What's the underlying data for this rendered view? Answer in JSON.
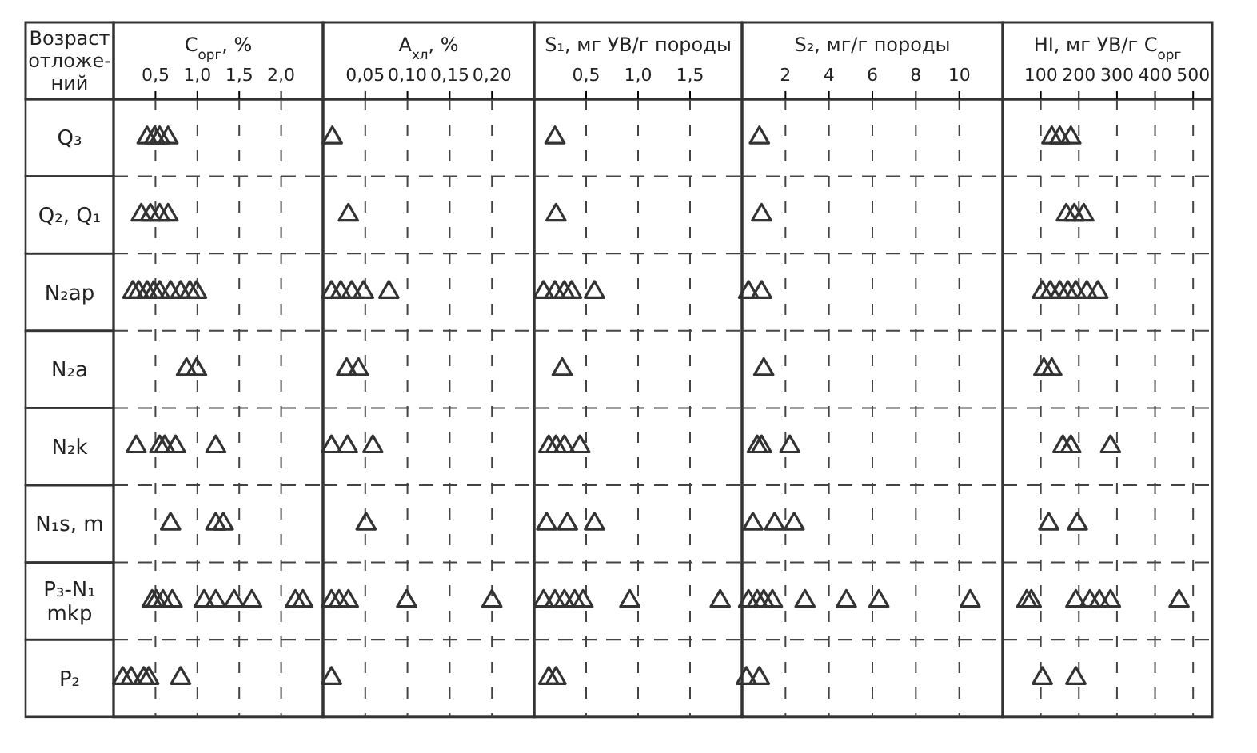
{
  "chart_data": [
    {
      "type": "scatter",
      "orientation": "horizontal",
      "title": "C$_{орг}$, %",
      "ylabel": "Возраст отложе-ний",
      "categories": [
        "Q₃",
        "Q₂, Q₁",
        "N₂ap",
        "N₂a",
        "N₂k",
        "N₁s, m",
        "P₃-N₁ mkp",
        "P₂"
      ],
      "xlim": [
        0,
        2.5
      ],
      "xticks": [
        {
          "value": 0.5,
          "label": "0,5"
        },
        {
          "value": 1.0,
          "label": "1,0"
        },
        {
          "value": 1.5,
          "label": "1,5"
        },
        {
          "value": 2.0,
          "label": "2,0"
        }
      ],
      "grid": "x",
      "marker": "triangle",
      "series": [
        {
          "color": "#333333",
          "values": [
            0.4,
            0.33,
            0.23,
            0.87,
            0.27,
            0.68,
            0.46,
            0.11
          ]
        },
        {
          "color": "#333333",
          "values": [
            0.49,
            0.44,
            0.3,
            0.99,
            0.55,
            1.22,
            0.51,
            0.21
          ]
        },
        {
          "color": "#333333",
          "values": [
            0.55,
            0.55,
            0.4,
            null,
            0.61,
            1.31,
            0.59,
            0.36
          ]
        },
        {
          "color": "#333333",
          "values": [
            0.65,
            0.65,
            0.48,
            null,
            0.74,
            null,
            0.7,
            0.42
          ]
        },
        {
          "color": "#333333",
          "values": [
            null,
            null,
            0.55,
            null,
            1.22,
            null,
            1.08,
            0.8
          ]
        },
        {
          "color": "#333333",
          "values": [
            null,
            null,
            0.68,
            null,
            null,
            null,
            1.22,
            null
          ]
        },
        {
          "color": "#333333",
          "values": [
            null,
            null,
            0.8,
            null,
            null,
            null,
            1.44,
            null
          ]
        },
        {
          "color": "#333333",
          "values": [
            null,
            null,
            0.91,
            null,
            null,
            null,
            1.65,
            null
          ]
        },
        {
          "color": "#333333",
          "values": [
            null,
            null,
            0.99,
            null,
            null,
            null,
            2.17,
            null
          ]
        },
        {
          "color": "#333333",
          "values": [
            null,
            null,
            null,
            null,
            null,
            null,
            2.26,
            null
          ]
        }
      ]
    },
    {
      "type": "scatter",
      "orientation": "horizontal",
      "title": "A$_{хл}$, %",
      "tick_labels": "x",
      "xlim": [
        0,
        0.25
      ],
      "xticks": [
        {
          "value": 0.05,
          "label": "0,05"
        },
        {
          "value": 0.1,
          "label": "0,10"
        },
        {
          "value": 0.15,
          "label": "0,15"
        },
        {
          "value": 0.2,
          "label": "0,20"
        }
      ],
      "grid": "x",
      "marker": "triangle",
      "series": [
        {
          "color": "#333333",
          "values": [
            0.011,
            0.03,
            0.01,
            0.028,
            0.01,
            0.051,
            0.01,
            0.01
          ]
        },
        {
          "color": "#333333",
          "values": [
            null,
            null,
            0.021,
            0.042,
            0.029,
            null,
            0.019,
            null
          ]
        },
        {
          "color": "#333333",
          "values": [
            null,
            null,
            0.034,
            null,
            0.059,
            null,
            0.03,
            null
          ]
        },
        {
          "color": "#333333",
          "values": [
            null,
            null,
            0.048,
            null,
            null,
            null,
            0.099,
            null
          ]
        },
        {
          "color": "#333333",
          "values": [
            null,
            null,
            0.078,
            null,
            null,
            null,
            0.2,
            null
          ]
        }
      ]
    },
    {
      "type": "scatter",
      "orientation": "horizontal",
      "title": "S₁, мг УВ/г породы",
      "tick_labels": "x",
      "xlim": [
        0,
        2
      ],
      "xticks": [
        {
          "value": 0.5,
          "label": "0,5"
        },
        {
          "value": 1.0,
          "label": "1,0"
        },
        {
          "value": 1.5,
          "label": "1,5"
        }
      ],
      "grid": "x",
      "marker": "triangle",
      "series": [
        {
          "color": "#333333",
          "values": [
            0.2,
            0.21,
            0.09,
            0.27,
            0.14,
            0.12,
            0.09,
            0.14
          ]
        },
        {
          "color": "#333333",
          "values": [
            null,
            null,
            0.2,
            null,
            0.21,
            0.32,
            0.2,
            0.21
          ]
        },
        {
          "color": "#333333",
          "values": [
            null,
            null,
            0.29,
            null,
            0.29,
            0.58,
            0.29,
            null
          ]
        },
        {
          "color": "#333333",
          "values": [
            null,
            null,
            0.36,
            null,
            0.44,
            null,
            0.39,
            null
          ]
        },
        {
          "color": "#333333",
          "values": [
            null,
            null,
            0.58,
            null,
            null,
            null,
            0.47,
            null
          ]
        },
        {
          "color": "#333333",
          "values": [
            null,
            null,
            null,
            null,
            null,
            null,
            0.92,
            null
          ]
        },
        {
          "color": "#333333",
          "values": [
            null,
            null,
            null,
            null,
            null,
            null,
            1.79,
            null
          ]
        }
      ]
    },
    {
      "type": "scatter",
      "orientation": "horizontal",
      "title": "S₂, мг/г породы",
      "tick_labels": "x",
      "xlim": [
        0,
        12
      ],
      "xticks": [
        2,
        4,
        6,
        8,
        10
      ],
      "grid": "x",
      "marker": "triangle",
      "series": [
        {
          "color": "#333333",
          "values": [
            0.8,
            0.9,
            0.3,
            1.0,
            0.7,
            0.5,
            0.3,
            0.2
          ]
        },
        {
          "color": "#333333",
          "values": [
            null,
            null,
            0.9,
            null,
            0.9,
            1.5,
            0.7,
            0.8
          ]
        },
        {
          "color": "#333333",
          "values": [
            null,
            null,
            null,
            null,
            2.2,
            2.4,
            1.0,
            null
          ]
        },
        {
          "color": "#333333",
          "values": [
            null,
            null,
            null,
            null,
            null,
            null,
            1.4,
            null
          ]
        },
        {
          "color": "#333333",
          "values": [
            null,
            null,
            null,
            null,
            null,
            null,
            2.9,
            null
          ]
        },
        {
          "color": "#333333",
          "values": [
            null,
            null,
            null,
            null,
            null,
            null,
            4.8,
            null
          ]
        },
        {
          "color": "#333333",
          "values": [
            null,
            null,
            null,
            null,
            null,
            null,
            6.3,
            null
          ]
        },
        {
          "color": "#333333",
          "values": [
            null,
            null,
            null,
            null,
            null,
            null,
            10.5,
            null
          ]
        }
      ]
    },
    {
      "type": "scatter",
      "orientation": "horizontal",
      "title": "HI, мг УВ/г C$_{орг}$",
      "tick_labels": "x",
      "xlim": [
        0,
        550
      ],
      "xticks": [
        100,
        200,
        300,
        400,
        500
      ],
      "grid": "x",
      "marker": "triangle",
      "series": [
        {
          "color": "#333333",
          "values": [
            129,
            167,
            104,
            108,
            158,
            121,
            63,
            104
          ]
        },
        {
          "color": "#333333",
          "values": [
            150,
            188,
            125,
            129,
            179,
            196,
            75,
            192
          ]
        },
        {
          "color": "#333333",
          "values": [
            179,
            213,
            150,
            null,
            283,
            null,
            192,
            null
          ]
        },
        {
          "color": "#333333",
          "values": [
            null,
            null,
            171,
            null,
            null,
            null,
            229,
            null
          ]
        },
        {
          "color": "#333333",
          "values": [
            null,
            null,
            192,
            null,
            null,
            null,
            254,
            null
          ]
        },
        {
          "color": "#333333",
          "values": [
            null,
            null,
            221,
            null,
            null,
            null,
            283,
            null
          ]
        },
        {
          "color": "#333333",
          "values": [
            null,
            null,
            250,
            null,
            null,
            null,
            463,
            null
          ]
        }
      ]
    }
  ]
}
